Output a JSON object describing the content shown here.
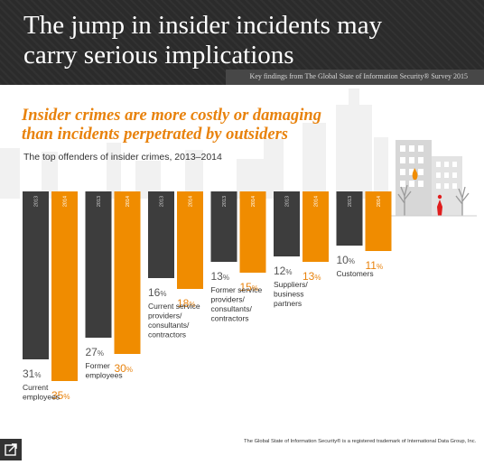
{
  "header": {
    "title": "The jump in insider incidents may\ncarry serious implications",
    "source": "Key findings from The Global State of Information Security® Survey 2015"
  },
  "headline": "Insider crimes are more costly or damaging\nthan incidents perpetrated by outsiders",
  "subtitle": "The top offenders of insider crimes, 2013–2014",
  "chart_data": {
    "type": "bar",
    "title": "The top offenders of insider crimes, 2013–2014",
    "series": [
      {
        "name": "2013",
        "values": [
          31,
          27,
          16,
          13,
          12,
          10
        ]
      },
      {
        "name": "2014",
        "values": [
          35,
          30,
          18,
          15,
          13,
          11
        ]
      }
    ],
    "categories": [
      "Current\nemployees",
      "Former\nemployees",
      "Current service\nproviders/\nconsultants/\ncontractors",
      "Former service\nproviders/\nconsultants/\ncontractors",
      "Suppliers/\nbusiness\npartners",
      "Customers"
    ],
    "value_suffix": "%",
    "ylim": [
      0,
      35
    ],
    "grid": false,
    "colors": {
      "2013": "#3d3d3d",
      "2014": "#f08c00"
    }
  },
  "footnote": "The Global State of Information Security® is a registered trademark of International Data Group, Inc.",
  "colors": {
    "header_bg": "#2b2b2b",
    "accent": "#e8820c",
    "bar_2013": "#3d3d3d",
    "bar_2014": "#f08c00"
  },
  "icons": {
    "expand": "expand-icon",
    "fire": "fire-icon"
  }
}
